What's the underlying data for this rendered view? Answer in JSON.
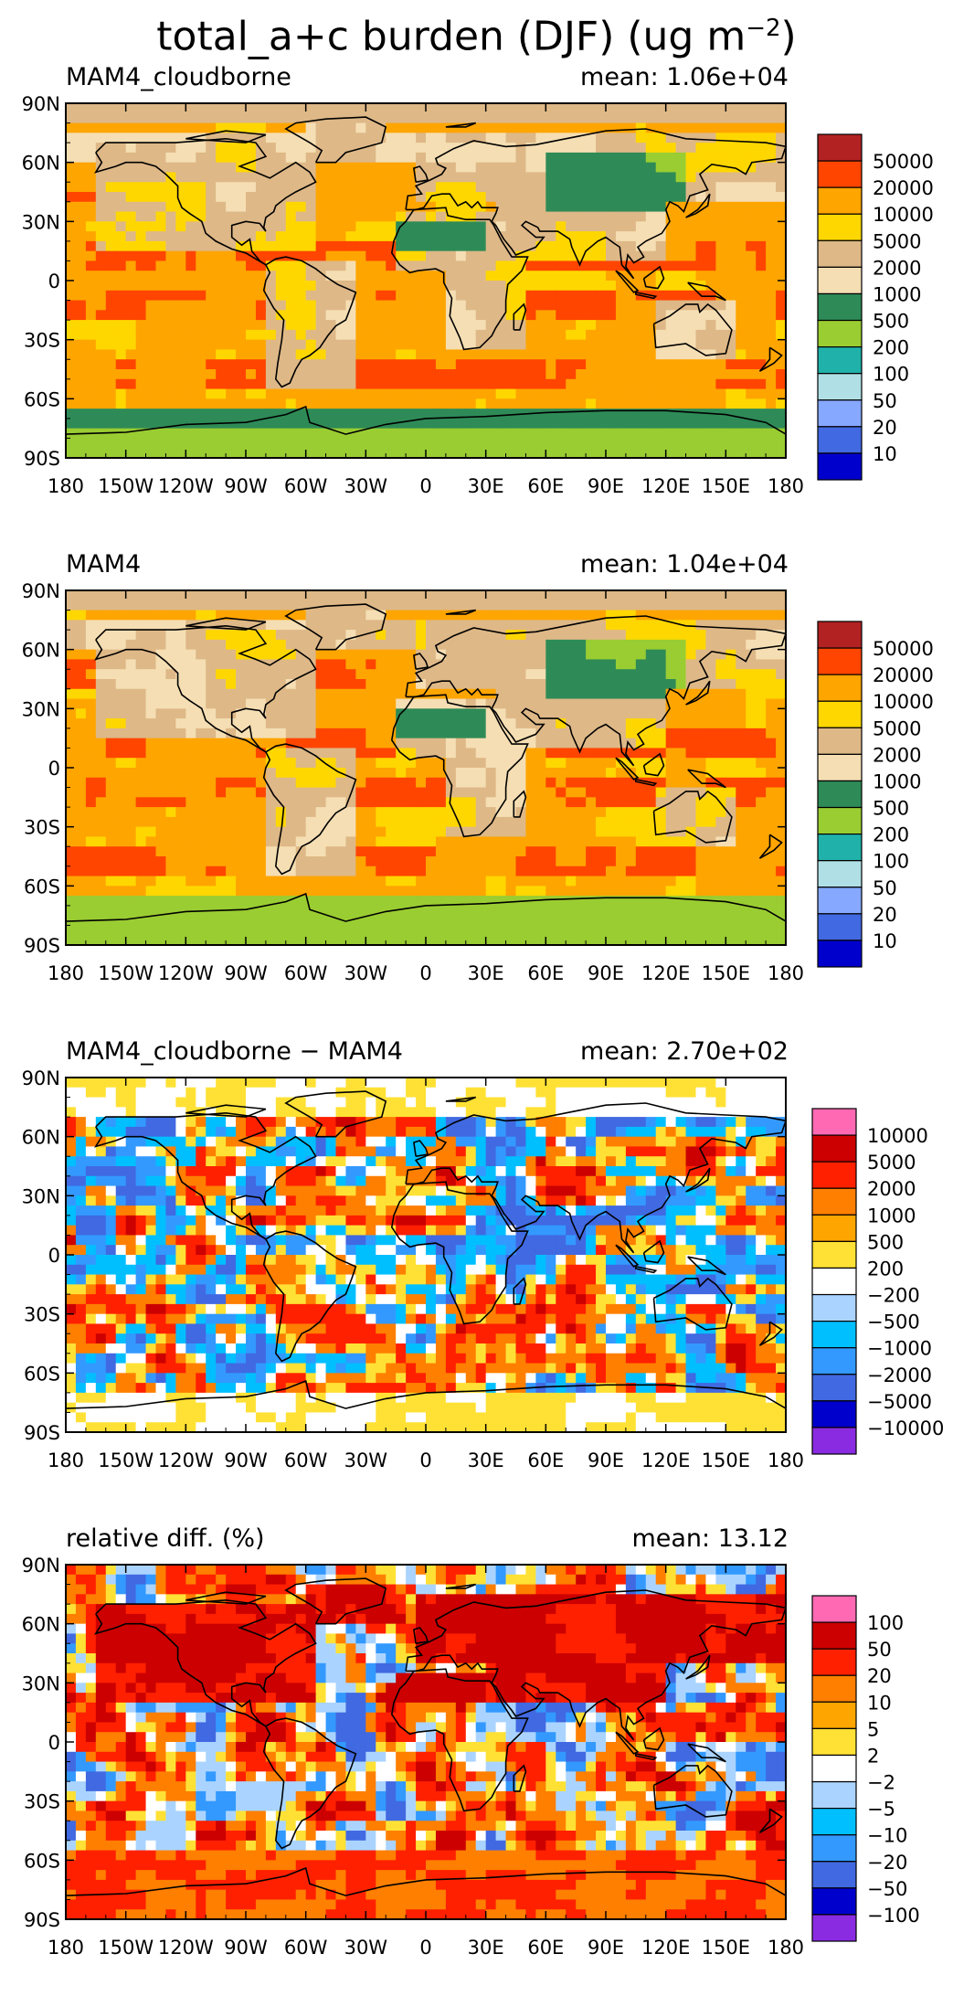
{
  "title_main": "total_a+c burden (DJF) (ug m",
  "title_sup": "−2",
  "title_end": ")",
  "chart_data": [
    {
      "type": "heatmap",
      "panel_title": "MAM4_cloudborne",
      "mean_label": "mean:",
      "mean_value": "1.06e+04",
      "x_ticks": [
        "180",
        "150W",
        "120W",
        "90W",
        "60W",
        "30W",
        "0",
        "30E",
        "60E",
        "90E",
        "120E",
        "150E",
        "180"
      ],
      "y_ticks": [
        "90N",
        "60N",
        "30N",
        "0",
        "30S",
        "60S",
        "90S"
      ],
      "colorbar_labels": [
        "50000",
        "20000",
        "10000",
        "5000",
        "2000",
        "1000",
        "500",
        "200",
        "100",
        "50",
        "20",
        "10"
      ],
      "colorbar_colors": [
        "#b22222",
        "#ff4500",
        "#ffa500",
        "#ffd700",
        "#deb887",
        "#f5deb3",
        "#2e8b57",
        "#9acd32",
        "#20b2aa",
        "#b0e0e6",
        "#87a8ff",
        "#4169e1",
        "#0000cd"
      ],
      "field_levels": [
        0,
        1,
        2,
        3,
        4,
        5,
        6,
        7,
        8,
        9,
        10,
        11,
        12
      ],
      "style": "burden"
    },
    {
      "type": "heatmap",
      "panel_title": "MAM4",
      "mean_label": "mean:",
      "mean_value": "1.04e+04",
      "x_ticks": [
        "180",
        "150W",
        "120W",
        "90W",
        "60W",
        "30W",
        "0",
        "30E",
        "60E",
        "90E",
        "120E",
        "150E",
        "180"
      ],
      "y_ticks": [
        "90N",
        "60N",
        "30N",
        "0",
        "30S",
        "60S",
        "90S"
      ],
      "colorbar_labels": [
        "50000",
        "20000",
        "10000",
        "5000",
        "2000",
        "1000",
        "500",
        "200",
        "100",
        "50",
        "20",
        "10"
      ],
      "colorbar_colors": [
        "#b22222",
        "#ff4500",
        "#ffa500",
        "#ffd700",
        "#deb887",
        "#f5deb3",
        "#2e8b57",
        "#9acd32",
        "#20b2aa",
        "#b0e0e6",
        "#87a8ff",
        "#4169e1",
        "#0000cd"
      ],
      "style": "burden2"
    },
    {
      "type": "heatmap",
      "panel_title": "MAM4_cloudborne − MAM4",
      "mean_label": "mean:",
      "mean_value": "2.70e+02",
      "x_ticks": [
        "180",
        "150W",
        "120W",
        "90W",
        "60W",
        "30W",
        "0",
        "30E",
        "60E",
        "90E",
        "120E",
        "150E",
        "180"
      ],
      "y_ticks": [
        "90N",
        "60N",
        "30N",
        "0",
        "30S",
        "60S",
        "90S"
      ],
      "colorbar_labels": [
        "10000",
        "5000",
        "2000",
        "1000",
        "500",
        "200",
        "−200",
        "−500",
        "−1000",
        "−2000",
        "−5000",
        "−10000"
      ],
      "colorbar_colors": [
        "#ff69b4",
        "#cc0000",
        "#ff2000",
        "#ff7f00",
        "#ffa500",
        "#ffe135",
        "#ffffff",
        "#aad4ff",
        "#00bfff",
        "#3399ff",
        "#4169e1",
        "#0000cd",
        "#8a2be2"
      ],
      "style": "diff"
    },
    {
      "type": "heatmap",
      "panel_title": "relative diff. (%)",
      "mean_label": "mean:",
      "mean_value": "13.12",
      "x_ticks": [
        "180",
        "150W",
        "120W",
        "90W",
        "60W",
        "30W",
        "0",
        "30E",
        "60E",
        "90E",
        "120E",
        "150E",
        "180"
      ],
      "y_ticks": [
        "90N",
        "60N",
        "30N",
        "0",
        "30S",
        "60S",
        "90S"
      ],
      "colorbar_labels": [
        "100",
        "50",
        "20",
        "10",
        "5",
        "2",
        "−2",
        "−5",
        "−10",
        "−20",
        "−50",
        "−100"
      ],
      "colorbar_colors": [
        "#ff69b4",
        "#cc0000",
        "#ff2000",
        "#ff7f00",
        "#ffa500",
        "#ffe135",
        "#ffffff",
        "#aad4ff",
        "#00bfff",
        "#3399ff",
        "#4169e1",
        "#0000cd",
        "#8a2be2"
      ],
      "style": "rel"
    }
  ]
}
